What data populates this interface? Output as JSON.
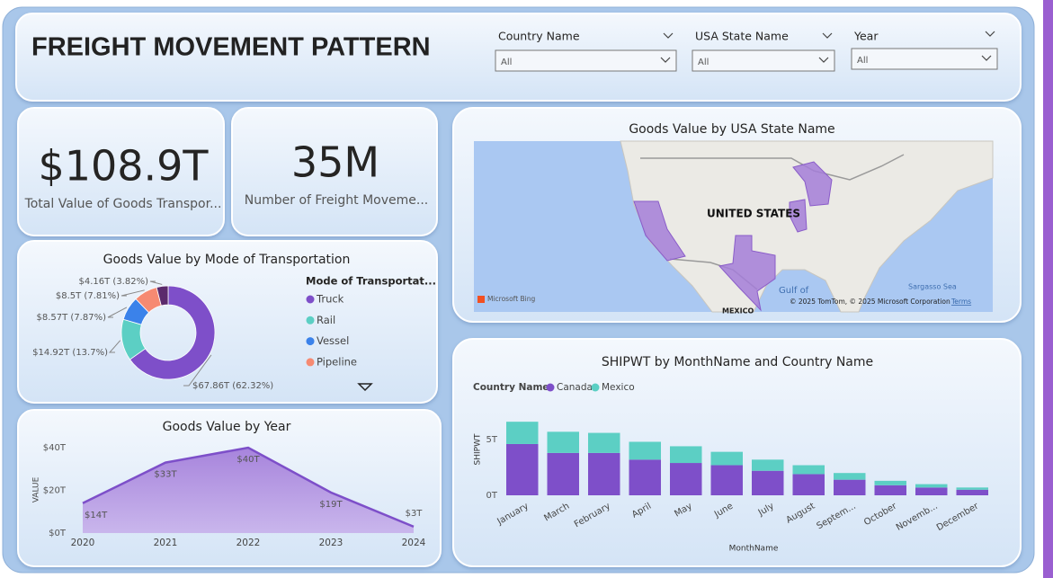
{
  "header": {
    "title": "FREIGHT MOVEMENT PATTERN"
  },
  "filters": [
    {
      "label": "Country Name",
      "value": "All"
    },
    {
      "label": "USA State Name",
      "value": "All"
    },
    {
      "label": "Year",
      "value": "All"
    }
  ],
  "kpis": [
    {
      "value": "$108.9T",
      "label": "Total Value of Goods Transpor..."
    },
    {
      "value": "35M",
      "label": "Number of Freight Moveme..."
    }
  ],
  "map": {
    "title": "Goods Value by USA State Name",
    "country_label": "UNITED STATES",
    "places": [
      "Gulf of",
      "Sargasso Sea",
      "MEXICO"
    ],
    "attribution": "© 2025 TomTom, © 2025 Microsoft Corporation",
    "terms": "Terms",
    "provider": "Microsoft Bing"
  },
  "chart_data": [
    {
      "type": "pie",
      "title": "Goods Value by Mode of Transportation",
      "legend_title": "Mode of Transportat...",
      "categories": [
        "Truck",
        "Rail",
        "Vessel",
        "Pipeline",
        null
      ],
      "values": [
        67.86,
        14.92,
        8.57,
        8.5,
        4.16
      ],
      "value_labels": [
        "$67.86T (62.32%)",
        "$14.92T (13.7%)",
        "$8.57T (7.87%)",
        "$8.5T (7.81%)",
        "$4.16T (3.82%)"
      ],
      "colors": [
        "#7e4fc9",
        "#5ccfc4",
        "#3b82ea",
        "#f68a72",
        "#5b2a6c"
      ]
    },
    {
      "type": "area",
      "title": "Goods Value by Year",
      "y_label": "VALUE",
      "categories": [
        "2020",
        "2021",
        "2022",
        "2023",
        "2024"
      ],
      "values": [
        14,
        33,
        40,
        19,
        3
      ],
      "value_labels": [
        "$14T",
        "$33T",
        "$40T",
        "$19T",
        "$3T"
      ],
      "color": "#7d4fc9",
      "ylim": [
        0,
        40
      ],
      "yticks": [
        {
          "value": 0,
          "label": "$0T"
        },
        {
          "value": 20,
          "label": "$20T"
        },
        {
          "value": 40,
          "label": "$40T"
        }
      ]
    },
    {
      "type": "bar",
      "stacked": true,
      "title": "SHIPWT by MonthName and Country Name",
      "legend_title": "Country Name",
      "x_label": "MonthName",
      "y_label": "SHIPWT",
      "categories": [
        "January",
        "March",
        "February",
        "April",
        "May",
        "June",
        "July",
        "August",
        "Septem...",
        "October",
        "Novemb...",
        "December"
      ],
      "series": [
        {
          "name": "Canada",
          "color": "#7e4fc9",
          "values": [
            4.6,
            3.8,
            3.8,
            3.2,
            2.9,
            2.7,
            2.2,
            1.9,
            1.4,
            0.9,
            0.7,
            0.5
          ]
        },
        {
          "name": "Mexico",
          "color": "#5ccfc4",
          "values": [
            2.0,
            1.9,
            1.8,
            1.6,
            1.5,
            1.2,
            1.0,
            0.8,
            0.6,
            0.4,
            0.3,
            0.2
          ]
        }
      ],
      "ylim": [
        0,
        7
      ],
      "yticks": [
        {
          "value": 0,
          "label": "0T"
        },
        {
          "value": 5,
          "label": "5T"
        }
      ]
    }
  ]
}
